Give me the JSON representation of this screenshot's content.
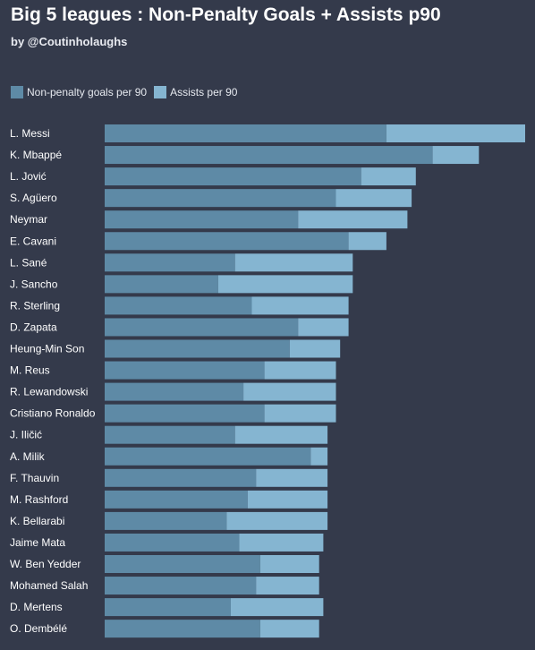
{
  "header": {
    "title": "Big 5 leagues : Non-Penalty Goals + Assists p90",
    "subtitle": "by @Coutinholaughs"
  },
  "colors": {
    "background": "#343a4b",
    "goals": "#5e8aa6",
    "assists": "#85b5d1"
  },
  "chart_data": {
    "type": "bar",
    "orientation": "horizontal",
    "stacked": true,
    "legend_position": "top-left",
    "grid": false,
    "categories": [
      "L. Messi",
      "K. Mbappé",
      "L. Jović",
      "S. Agüero",
      "Neymar",
      "E. Cavani",
      "L. Sané",
      "J. Sancho",
      "R. Sterling",
      "D. Zapata",
      "Heung-Min Son",
      "M. Reus",
      "R. Lewandowski",
      "Cristiano Ronaldo",
      "J. Iličić",
      "A. Milik",
      "F. Thauvin",
      "M. Rashford",
      "K. Bellarabi",
      "Jaime Mata",
      "W. Ben Yedder",
      "Mohamed Salah",
      "D. Mertens",
      "O. Dembélé"
    ],
    "series": [
      {
        "name": "Non-penalty goals per 90",
        "values": [
          0.67,
          0.78,
          0.61,
          0.55,
          0.46,
          0.58,
          0.31,
          0.27,
          0.35,
          0.46,
          0.44,
          0.38,
          0.33,
          0.38,
          0.31,
          0.49,
          0.36,
          0.34,
          0.29,
          0.32,
          0.37,
          0.36,
          0.3,
          0.37
        ]
      },
      {
        "name": "Assists per 90",
        "values": [
          0.33,
          0.11,
          0.13,
          0.18,
          0.26,
          0.09,
          0.28,
          0.32,
          0.23,
          0.12,
          0.12,
          0.17,
          0.22,
          0.17,
          0.22,
          0.04,
          0.17,
          0.19,
          0.24,
          0.2,
          0.14,
          0.15,
          0.22,
          0.14
        ]
      }
    ]
  }
}
